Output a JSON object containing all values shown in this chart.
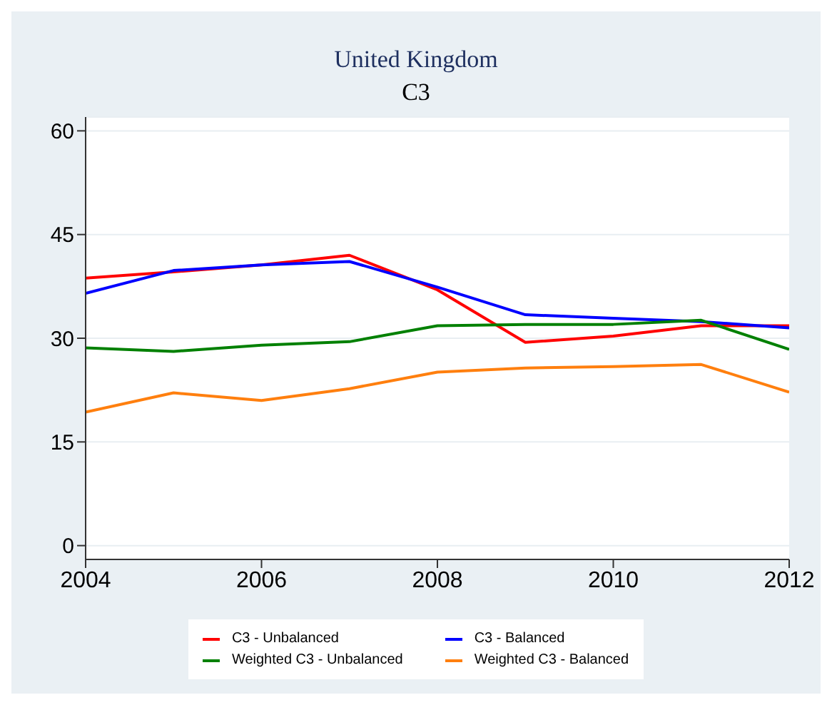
{
  "chart_data": {
    "type": "line",
    "title": "United Kingdom",
    "subtitle": "C3",
    "x": [
      2004,
      2005,
      2006,
      2007,
      2008,
      2009,
      2010,
      2011,
      2012
    ],
    "series": [
      {
        "name": "C3 - Unbalanced",
        "color": "#ff0000",
        "values": [
          38.7,
          39.6,
          40.6,
          42.0,
          37.0,
          29.4,
          30.3,
          31.8,
          31.8
        ]
      },
      {
        "name": "C3 - Balanced",
        "color": "#0000ff",
        "values": [
          36.5,
          39.8,
          40.6,
          41.1,
          37.4,
          33.4,
          32.9,
          32.4,
          31.5
        ]
      },
      {
        "name": "Weighted C3 - Unbalanced",
        "color": "#008000",
        "values": [
          28.6,
          28.1,
          29.0,
          29.5,
          31.8,
          32.0,
          32.0,
          32.6,
          28.4
        ]
      },
      {
        "name": "Weighted C3 - Balanced",
        "color": "#ff7f0e",
        "values": [
          19.3,
          22.1,
          21.0,
          22.7,
          25.1,
          25.7,
          25.9,
          26.2,
          22.2
        ]
      }
    ],
    "xlim": [
      2004,
      2012
    ],
    "xticks": [
      2004,
      2006,
      2008,
      2010,
      2012
    ],
    "ylim": [
      -2,
      62
    ],
    "yticks": [
      0,
      15,
      30,
      45,
      60
    ],
    "grid": "y",
    "legend": "bottom",
    "marker": "none",
    "line_style": "solid"
  }
}
